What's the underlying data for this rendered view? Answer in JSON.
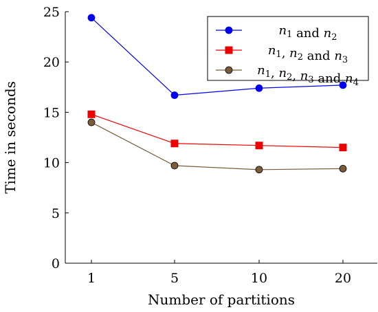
{
  "chart_data": {
    "type": "line",
    "title": "",
    "xlabel": "Number of partitions",
    "ylabel": "Time in seconds",
    "categories": [
      "1",
      "5",
      "10",
      "20"
    ],
    "ylim": [
      0,
      25
    ],
    "yticks": [
      0,
      5,
      10,
      15,
      20,
      25
    ],
    "grid": false,
    "legend_position": "top-right",
    "series": [
      {
        "name": "n1 and n2",
        "color": "#0000ee",
        "marker": "circle",
        "values": [
          24.4,
          16.7,
          17.4,
          17.7
        ]
      },
      {
        "name": "n1, n2 and n3",
        "color": "#ee0000",
        "marker": "square",
        "values": [
          14.8,
          11.9,
          11.7,
          11.5
        ]
      },
      {
        "name": "n1, n2, n3 and n4",
        "color": "#7a5c3a",
        "marker": "circle",
        "values": [
          14.0,
          9.7,
          9.3,
          9.4
        ]
      }
    ]
  }
}
